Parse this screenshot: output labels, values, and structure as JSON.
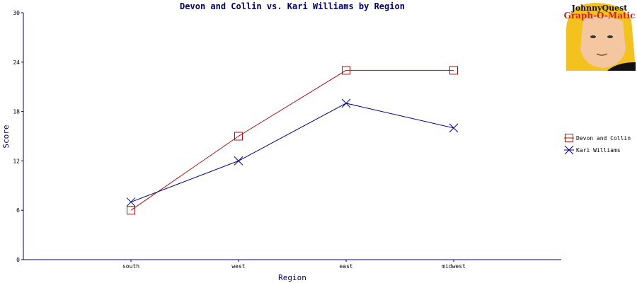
{
  "logo": {
    "line1": "JohnnyQuest",
    "line2": "Graph-O-Matic"
  },
  "chart_data": {
    "type": "line",
    "title": "Devon and Collin vs. Kari Williams by Region",
    "xlabel": "Region",
    "ylabel": "Score",
    "categories": [
      "south",
      "west",
      "east",
      "midwest"
    ],
    "ylim": [
      0,
      30
    ],
    "yticks": [
      0,
      6,
      12,
      18,
      24,
      30
    ],
    "grid": false,
    "legend_position": "right",
    "series": [
      {
        "name": "Devon and Collin",
        "values": [
          6,
          15,
          23,
          23
        ],
        "color": "#aa1111",
        "marker": "square"
      },
      {
        "name": "Kari Williams",
        "values": [
          7,
          12,
          19,
          16
        ],
        "color": "#000088",
        "marker": "x"
      }
    ]
  }
}
